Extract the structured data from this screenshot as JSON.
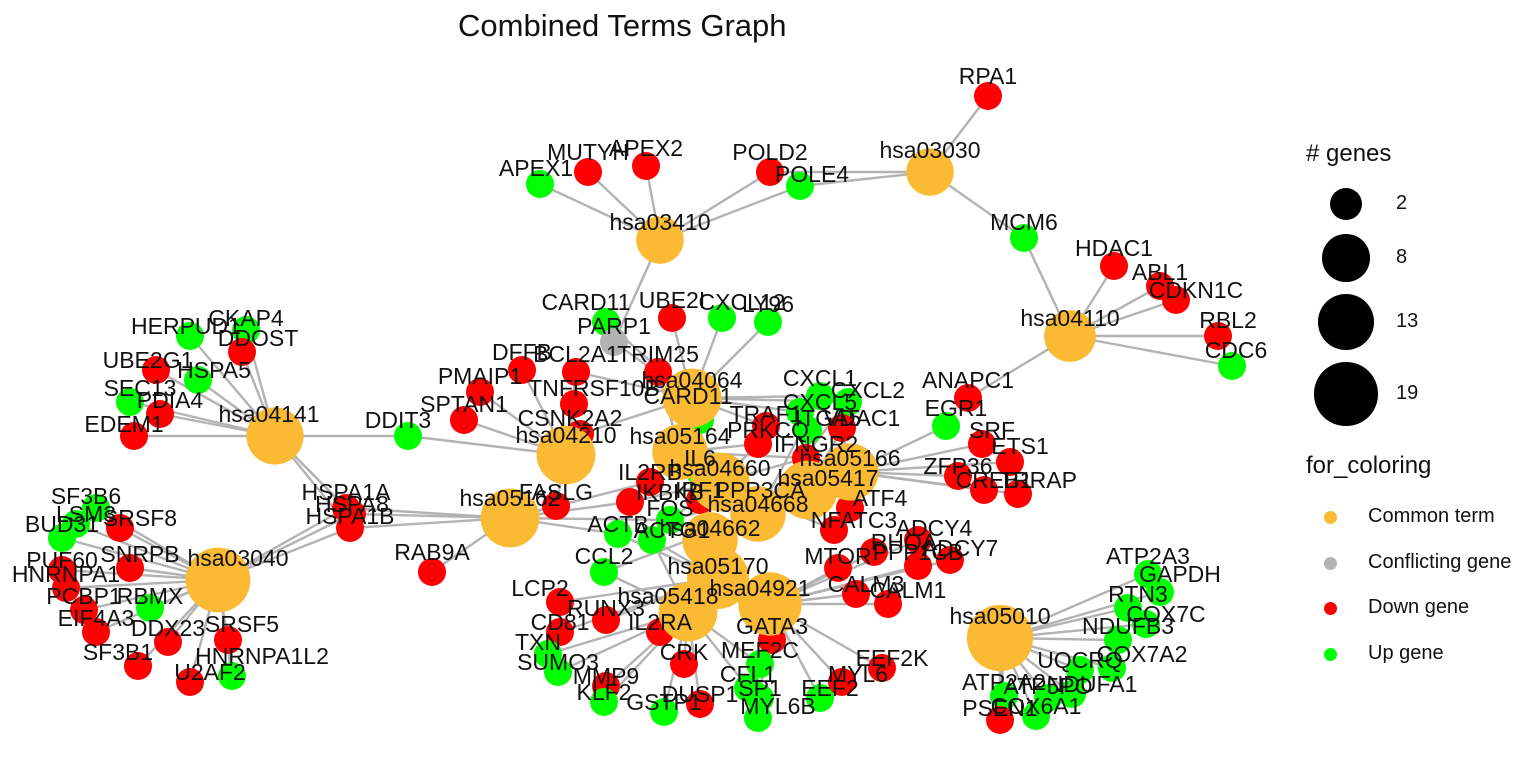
{
  "title": "Combined Terms Graph",
  "colors": {
    "Common term": "#FBBA33",
    "Conflicting gene": "#B2B2B2",
    "Down gene": "#FF0000",
    "Up gene": "#00FF00",
    "edge": "#B3B3B3"
  },
  "legend_size": {
    "title": "# genes",
    "items": [
      {
        "label": "2",
        "value": 2
      },
      {
        "label": "8",
        "value": 8
      },
      {
        "label": "13",
        "value": 13
      },
      {
        "label": "19",
        "value": 19
      }
    ]
  },
  "legend_color": {
    "title": "for_coloring",
    "items": [
      {
        "label": "Common term",
        "key": "Common term"
      },
      {
        "label": "Conflicting gene",
        "key": "Conflicting gene"
      },
      {
        "label": "Down gene",
        "key": "Down gene"
      },
      {
        "label": "Up gene",
        "key": "Up gene"
      }
    ]
  },
  "terms": [
    {
      "id": "hsa03030",
      "genes": 6
    },
    {
      "id": "hsa03410",
      "genes": 6
    },
    {
      "id": "hsa04110",
      "genes": 8
    },
    {
      "id": "hsa04141",
      "genes": 11
    },
    {
      "id": "hsa03040",
      "genes": 16
    },
    {
      "id": "hsa05162",
      "genes": 12
    },
    {
      "id": "hsa04064",
      "genes": 12
    },
    {
      "id": "hsa04210",
      "genes": 12
    },
    {
      "id": "hsa05164",
      "genes": 10
    },
    {
      "id": "hsa04660",
      "genes": 12
    },
    {
      "id": "hsa05166",
      "genes": 11
    },
    {
      "id": "hsa05417",
      "genes": 12
    },
    {
      "id": "hsa04668",
      "genes": 10
    },
    {
      "id": "hsa04662",
      "genes": 10
    },
    {
      "id": "hsa05170",
      "genes": 14
    },
    {
      "id": "hsa05418",
      "genes": 12
    },
    {
      "id": "hsa04921",
      "genes": 15
    },
    {
      "id": "hsa05010",
      "genes": 17
    }
  ],
  "genes": [
    {
      "id": "RPA1",
      "type": "Down gene",
      "terms": [
        "hsa03030"
      ]
    },
    {
      "id": "POLD2",
      "type": "Down gene",
      "terms": [
        "hsa03030",
        "hsa03410"
      ]
    },
    {
      "id": "POLE4",
      "type": "Up gene",
      "terms": [
        "hsa03030",
        "hsa03410"
      ]
    },
    {
      "id": "MCM6",
      "type": "Up gene",
      "terms": [
        "hsa03030",
        "hsa04110"
      ]
    },
    {
      "id": "APEX1",
      "type": "Up gene",
      "terms": [
        "hsa03410"
      ]
    },
    {
      "id": "MUTYH",
      "type": "Down gene",
      "terms": [
        "hsa03410"
      ]
    },
    {
      "id": "APEX2",
      "type": "Down gene",
      "terms": [
        "hsa03410"
      ]
    },
    {
      "id": "HDAC1",
      "type": "Down gene",
      "terms": [
        "hsa04110"
      ]
    },
    {
      "id": "ABL1",
      "type": "Down gene",
      "terms": [
        "hsa04110"
      ]
    },
    {
      "id": "CDKN1C",
      "type": "Down gene",
      "terms": [
        "hsa04110"
      ]
    },
    {
      "id": "RBL2",
      "type": "Down gene",
      "terms": [
        "hsa04110"
      ]
    },
    {
      "id": "CDC6",
      "type": "Up gene",
      "terms": [
        "hsa04110"
      ]
    },
    {
      "id": "ANAPC1",
      "type": "Down gene",
      "terms": [
        "hsa04110"
      ]
    },
    {
      "id": "CKAP4",
      "type": "Up gene",
      "terms": [
        "hsa04141"
      ]
    },
    {
      "id": "HERPUD1",
      "type": "Up gene",
      "terms": [
        "hsa04141"
      ]
    },
    {
      "id": "DDOST",
      "type": "Down gene",
      "terms": [
        "hsa04141"
      ]
    },
    {
      "id": "UBE2G1",
      "type": "Down gene",
      "terms": [
        "hsa04141"
      ]
    },
    {
      "id": "HSPA5",
      "type": "Up gene",
      "terms": [
        "hsa04141"
      ]
    },
    {
      "id": "SEC13",
      "type": "Up gene",
      "terms": [
        "hsa04141"
      ]
    },
    {
      "id": "PDIA4",
      "type": "Down gene",
      "terms": [
        "hsa04141"
      ]
    },
    {
      "id": "EDEM1",
      "type": "Down gene",
      "terms": [
        "hsa04141"
      ]
    },
    {
      "id": "DDIT3",
      "type": "Up gene",
      "terms": [
        "hsa04141",
        "hsa04210"
      ]
    },
    {
      "id": "SF3B6",
      "type": "Up gene",
      "terms": [
        "hsa03040"
      ]
    },
    {
      "id": "LSM3",
      "type": "Up gene",
      "terms": [
        "hsa03040"
      ]
    },
    {
      "id": "SRSF8",
      "type": "Down gene",
      "terms": [
        "hsa03040"
      ]
    },
    {
      "id": "BUD31",
      "type": "Up gene",
      "terms": [
        "hsa03040"
      ]
    },
    {
      "id": "SNRPB",
      "type": "Down gene",
      "terms": [
        "hsa03040"
      ]
    },
    {
      "id": "PUF60",
      "type": "Down gene",
      "terms": [
        "hsa03040"
      ]
    },
    {
      "id": "HNRNPA1",
      "type": "Down gene",
      "terms": [
        "hsa03040"
      ]
    },
    {
      "id": "PCBP1",
      "type": "Down gene",
      "terms": [
        "hsa03040"
      ]
    },
    {
      "id": "RBMX",
      "type": "Up gene",
      "terms": [
        "hsa03040"
      ]
    },
    {
      "id": "EIF4A3",
      "type": "Down gene",
      "terms": [
        "hsa03040"
      ]
    },
    {
      "id": "DDX23",
      "type": "Down gene",
      "terms": [
        "hsa03040"
      ]
    },
    {
      "id": "SRSF5",
      "type": "Down gene",
      "terms": [
        "hsa03040"
      ]
    },
    {
      "id": "SF3B1",
      "type": "Down gene",
      "terms": [
        "hsa03040"
      ]
    },
    {
      "id": "HNRNPA1L2",
      "type": "Up gene",
      "terms": [
        "hsa03040"
      ]
    },
    {
      "id": "U2AF2",
      "type": "Down gene",
      "terms": [
        "hsa03040"
      ]
    },
    {
      "id": "HSPA1A",
      "type": "Down gene",
      "terms": [
        "hsa04141",
        "hsa03040",
        "hsa05162"
      ]
    },
    {
      "id": "HSPA8",
      "type": "Down gene",
      "terms": [
        "hsa04141",
        "hsa03040",
        "hsa05162"
      ]
    },
    {
      "id": "HSPA1B",
      "type": "Down gene",
      "terms": [
        "hsa04141",
        "hsa03040",
        "hsa05162"
      ]
    },
    {
      "id": "RAB9A",
      "type": "Down gene",
      "terms": [
        "hsa05162"
      ]
    },
    {
      "id": "CARD11",
      "type": "Up gene",
      "terms": [
        "hsa04064"
      ]
    },
    {
      "id": "UBE2I",
      "type": "Down gene",
      "terms": [
        "hsa04064"
      ]
    },
    {
      "id": "CXCL12",
      "type": "Up gene",
      "terms": [
        "hsa04064"
      ]
    },
    {
      "id": "LY96",
      "type": "Up gene",
      "terms": [
        "hsa04064"
      ]
    },
    {
      "id": "PARP1",
      "type": "Conflicting gene",
      "terms": [
        "hsa04064",
        "hsa03410"
      ]
    },
    {
      "id": "DFFB",
      "type": "Down gene",
      "terms": [
        "hsa04210"
      ]
    },
    {
      "id": "BCL2A1",
      "type": "Down gene",
      "terms": [
        "hsa04064",
        "hsa04210"
      ]
    },
    {
      "id": "TRIM25",
      "type": "Down gene",
      "terms": [
        "hsa05164"
      ]
    },
    {
      "id": "PMAIP1",
      "type": "Down gene",
      "terms": [
        "hsa04210"
      ]
    },
    {
      "id": "TNFRSF10B",
      "type": "Down gene",
      "terms": [
        "hsa04210"
      ]
    },
    {
      "id": "SPTAN1",
      "type": "Down gene",
      "terms": [
        "hsa04210"
      ]
    },
    {
      "id": "CSNK2A2",
      "type": "Down gene",
      "terms": [
        "hsa04064"
      ]
    },
    {
      "id": "CARD11_2",
      "label": "CARD11",
      "type": "Up gene",
      "terms": [
        "hsa04662"
      ]
    },
    {
      "id": "CXCL1",
      "type": "Up gene",
      "terms": [
        "hsa04064",
        "hsa04668"
      ]
    },
    {
      "id": "CXCL2",
      "type": "Up gene",
      "terms": [
        "hsa04064",
        "hsa04668"
      ]
    },
    {
      "id": "CXCL5",
      "type": "Up gene",
      "terms": [
        "hsa04064"
      ]
    },
    {
      "id": "TRAF1",
      "type": "Down gene",
      "terms": [
        "hsa04064"
      ]
    },
    {
      "id": "ITGA5",
      "type": "Up gene",
      "terms": [
        "hsa05417"
      ]
    },
    {
      "id": "VDAC1",
      "type": "Down gene",
      "terms": [
        "hsa05166",
        "hsa05417"
      ]
    },
    {
      "id": "EGR1",
      "type": "Up gene",
      "terms": [
        "hsa05166"
      ]
    },
    {
      "id": "SRF",
      "type": "Down gene",
      "terms": [
        "hsa05166"
      ]
    },
    {
      "id": "ETS1",
      "type": "Down gene",
      "terms": [
        "hsa05166"
      ]
    },
    {
      "id": "ZFP36",
      "type": "Down gene",
      "terms": [
        "hsa05166"
      ]
    },
    {
      "id": "CREB1",
      "type": "Down gene",
      "terms": [
        "hsa05166"
      ]
    },
    {
      "id": "TRRAP",
      "type": "Down gene",
      "terms": [
        "hsa05166"
      ]
    },
    {
      "id": "PRKCQ",
      "type": "Down gene",
      "terms": [
        "hsa04660",
        "hsa05164"
      ]
    },
    {
      "id": "IFNGR2",
      "type": "Down gene",
      "terms": [
        "hsa05164",
        "hsa04660"
      ]
    },
    {
      "id": "IL6",
      "type": "Up gene",
      "terms": [
        "hsa05164",
        "hsa04668"
      ]
    },
    {
      "id": "IL2RB",
      "type": "Down gene",
      "terms": [
        "hsa05162",
        "hsa05164"
      ]
    },
    {
      "id": "FASLG",
      "type": "Down gene",
      "terms": [
        "hsa05162",
        "hsa04210"
      ]
    },
    {
      "id": "IKBKB",
      "type": "Down gene",
      "terms": [
        "hsa05162",
        "hsa04660"
      ]
    },
    {
      "id": "IRF1",
      "type": "Down gene",
      "terms": [
        "hsa05164"
      ]
    },
    {
      "id": "PPP3CA",
      "type": "Down gene",
      "terms": [
        "hsa04660"
      ]
    },
    {
      "id": "ATF4",
      "type": "Down gene",
      "terms": [
        "hsa05166"
      ]
    },
    {
      "id": "NFATC3",
      "type": "Down gene",
      "terms": [
        "hsa04660",
        "hsa05166"
      ]
    },
    {
      "id": "ADCY4",
      "type": "Down gene",
      "terms": [
        "hsa04921"
      ]
    },
    {
      "id": "ADCY7",
      "type": "Down gene",
      "terms": [
        "hsa04921"
      ]
    },
    {
      "id": "RHOA",
      "type": "Down gene",
      "terms": [
        "hsa04921"
      ]
    },
    {
      "id": "MTOR",
      "type": "Down gene",
      "terms": [
        "hsa04921"
      ]
    },
    {
      "id": "PPP1CB",
      "type": "Down gene",
      "terms": [
        "hsa04921"
      ]
    },
    {
      "id": "CALM3",
      "type": "Down gene",
      "terms": [
        "hsa04921"
      ]
    },
    {
      "id": "CALM1",
      "type": "Down gene",
      "terms": [
        "hsa04921"
      ]
    },
    {
      "id": "FOS",
      "type": "Up gene",
      "terms": [
        "hsa05162",
        "hsa04660",
        "hsa05166"
      ]
    },
    {
      "id": "ACTB",
      "type": "Up gene",
      "terms": [
        "hsa05162",
        "hsa05170"
      ]
    },
    {
      "id": "ACTG1",
      "type": "Up gene",
      "terms": [
        "hsa05170",
        "hsa05418"
      ]
    },
    {
      "id": "CCL2",
      "type": "Up gene",
      "terms": [
        "hsa04668",
        "hsa05418"
      ]
    },
    {
      "id": "LCP2",
      "type": "Down gene",
      "terms": [
        "hsa05170"
      ]
    },
    {
      "id": "CD81",
      "type": "Down gene",
      "terms": [
        "hsa05170"
      ]
    },
    {
      "id": "RUNX3",
      "type": "Down gene",
      "terms": [
        "hsa05170"
      ]
    },
    {
      "id": "IL2RA",
      "type": "Down gene",
      "terms": [
        "hsa05170"
      ]
    },
    {
      "id": "GATA3",
      "type": "Down gene",
      "terms": [
        "hsa05170",
        "hsa04921"
      ]
    },
    {
      "id": "TXN",
      "type": "Up gene",
      "terms": [
        "hsa05418"
      ]
    },
    {
      "id": "SUMO3",
      "type": "Up gene",
      "terms": [
        "hsa05418"
      ]
    },
    {
      "id": "MMP9",
      "type": "Down gene",
      "terms": [
        "hsa05418"
      ]
    },
    {
      "id": "KLF2",
      "type": "Up gene",
      "terms": [
        "hsa05418"
      ]
    },
    {
      "id": "CRK",
      "type": "Down gene",
      "terms": [
        "hsa05418"
      ]
    },
    {
      "id": "MEF2C",
      "type": "Up gene",
      "terms": [
        "hsa05418",
        "hsa04921"
      ]
    },
    {
      "id": "CFL1",
      "type": "Up gene",
      "terms": [
        "hsa05418"
      ]
    },
    {
      "id": "GSTP1",
      "type": "Up gene",
      "terms": [
        "hsa05418"
      ]
    },
    {
      "id": "DUSP1",
      "type": "Down gene",
      "terms": [
        "hsa05418"
      ]
    },
    {
      "id": "SP1",
      "type": "Up gene",
      "terms": [
        "hsa04921"
      ]
    },
    {
      "id": "MYL6B",
      "type": "Up gene",
      "terms": [
        "hsa04921"
      ]
    },
    {
      "id": "EEF2",
      "type": "Up gene",
      "terms": [
        "hsa04921"
      ]
    },
    {
      "id": "MYL6",
      "type": "Down gene",
      "terms": [
        "hsa04921"
      ]
    },
    {
      "id": "EEF2K",
      "type": "Down gene",
      "terms": [
        "hsa04921"
      ]
    },
    {
      "id": "ATP2A3",
      "type": "Up gene",
      "terms": [
        "hsa05010"
      ]
    },
    {
      "id": "GAPDH",
      "type": "Up gene",
      "terms": [
        "hsa05010"
      ]
    },
    {
      "id": "RTN3",
      "type": "Up gene",
      "terms": [
        "hsa05010"
      ]
    },
    {
      "id": "COX7C",
      "type": "Up gene",
      "terms": [
        "hsa05010"
      ]
    },
    {
      "id": "NDUFB3",
      "type": "Up gene",
      "terms": [
        "hsa05010"
      ]
    },
    {
      "id": "UQCRQ",
      "type": "Up gene",
      "terms": [
        "hsa05010"
      ]
    },
    {
      "id": "COX7A2",
      "type": "Up gene",
      "terms": [
        "hsa05010"
      ]
    },
    {
      "id": "NDUFA1",
      "type": "Up gene",
      "terms": [
        "hsa05010"
      ]
    },
    {
      "id": "ATP5PO",
      "type": "Up gene",
      "terms": [
        "hsa05010"
      ]
    },
    {
      "id": "ATP2A2",
      "type": "Up gene",
      "terms": [
        "hsa05010"
      ]
    },
    {
      "id": "COX6A1",
      "type": "Up gene",
      "terms": [
        "hsa05010"
      ]
    },
    {
      "id": "PSEN1",
      "type": "Down gene",
      "terms": [
        "hsa05010"
      ]
    }
  ]
}
